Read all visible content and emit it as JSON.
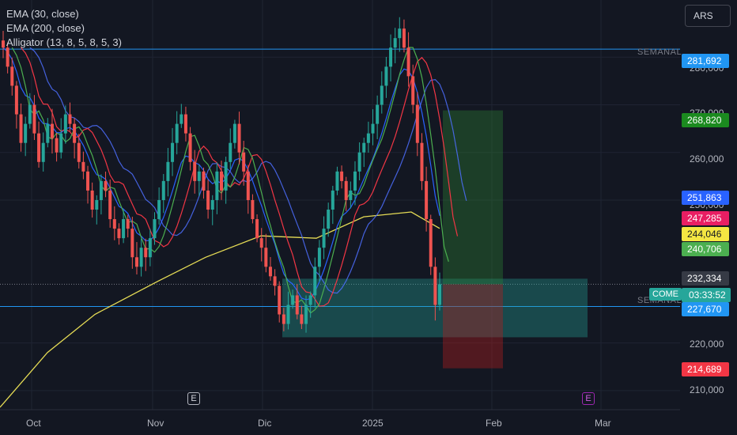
{
  "legend": [
    {
      "label": "EMA (30, close)"
    },
    {
      "label": "EMA (200, close)"
    },
    {
      "label": "Alligator (13, 8, 5, 8, 5, 3)"
    }
  ],
  "currency_button": "ARS",
  "colors": {
    "background": "#131722",
    "grid": "#1f2433",
    "up": "#26a69a",
    "down": "#ef5350",
    "ema30": "#2962ff",
    "ema200": "#e6dc55",
    "jaw": "#4d6fff",
    "teeth": "#f23645",
    "lips": "#4caf50",
    "level_line": "#2196f3",
    "zone": "#26a69a",
    "target": "#2e7d32",
    "stop": "#b71c1c"
  },
  "level_lines": [
    {
      "name": "SEMANAL",
      "value": 281692
    },
    {
      "name": "SEMANAL",
      "value": 227670
    }
  ],
  "price_labels": [
    {
      "text": "281,692",
      "bg": "#2196f3",
      "fg": "#ffffff",
      "value": 281692
    },
    {
      "text": "268,820",
      "bg": "#1b8a1f",
      "fg": "#ffffff",
      "value": 268820
    },
    {
      "text": "251,863",
      "bg": "#2962ff",
      "fg": "#ffffff",
      "value": 251863
    },
    {
      "text": "247,285",
      "bg": "#e91e63",
      "fg": "#ffffff",
      "value": 247285
    },
    {
      "text": "244,046",
      "bg": "#f5e642",
      "fg": "#131722",
      "value": 244046
    },
    {
      "text": "240,706",
      "bg": "#4caf50",
      "fg": "#ffffff",
      "value": 240706
    },
    {
      "text": "232,334",
      "bg": "#363a45",
      "fg": "#ffffff",
      "value": 232334
    },
    {
      "text": "227,670",
      "bg": "#2196f3",
      "fg": "#ffffff",
      "value": 227670
    },
    {
      "text": "214,689",
      "bg": "#f23645",
      "fg": "#ffffff",
      "value": 214689
    }
  ],
  "current_price": {
    "symbol": "COME",
    "countdown": "03:33:52"
  },
  "earnings_marker": "E",
  "chart_data": {
    "type": "candlestick",
    "currency": "ARS",
    "y_axis": {
      "ticks": [
        {
          "value": 280000,
          "label": "280,000"
        },
        {
          "value": 270000,
          "label": "270,000"
        },
        {
          "value": 260000,
          "label": "260,000"
        },
        {
          "value": 250000,
          "label": "250,000"
        },
        {
          "value": 220000,
          "label": "220,000"
        },
        {
          "value": 210000,
          "label": "210,000"
        }
      ],
      "range": [
        206000,
        292000
      ]
    },
    "x_axis": {
      "ticks": [
        {
          "label": "Oct"
        },
        {
          "label": "Nov"
        },
        {
          "label": "Dic"
        },
        {
          "label": "2025"
        },
        {
          "label": "Feb"
        },
        {
          "label": "Mar"
        }
      ]
    },
    "candles_approx_close": [
      282000,
      278000,
      274000,
      268000,
      262000,
      266000,
      270000,
      264000,
      258000,
      262000,
      266000,
      263000,
      260000,
      264000,
      268000,
      266000,
      262000,
      258000,
      256000,
      252000,
      248000,
      250000,
      254000,
      252000,
      246000,
      244000,
      242000,
      246000,
      244000,
      238000,
      236000,
      240000,
      238000,
      242000,
      246000,
      250000,
      254000,
      258000,
      262000,
      266000,
      268000,
      264000,
      258000,
      254000,
      256000,
      252000,
      248000,
      250000,
      256000,
      252000,
      258000,
      262000,
      266000,
      260000,
      256000,
      250000,
      246000,
      242000,
      240000,
      236000,
      234000,
      232000,
      226000,
      224000,
      228000,
      230000,
      226000,
      224000,
      228000,
      230000,
      236000,
      240000,
      244000,
      248000,
      252000,
      256000,
      254000,
      250000,
      252000,
      256000,
      260000,
      262000,
      264000,
      266000,
      270000,
      274000,
      278000,
      282000,
      284000,
      286000,
      282000,
      276000,
      270000,
      262000,
      254000,
      246000,
      236000,
      228000,
      232334
    ],
    "ema_30_last": 251863,
    "ema_200_last": 244046,
    "alligator_last": {
      "jaw": 251863,
      "teeth": 247285,
      "lips": 240706
    },
    "demand_zone": {
      "top": 233500,
      "bottom": 221200
    },
    "position": {
      "entry": 232334,
      "target": 268820,
      "stop": 214689
    }
  }
}
